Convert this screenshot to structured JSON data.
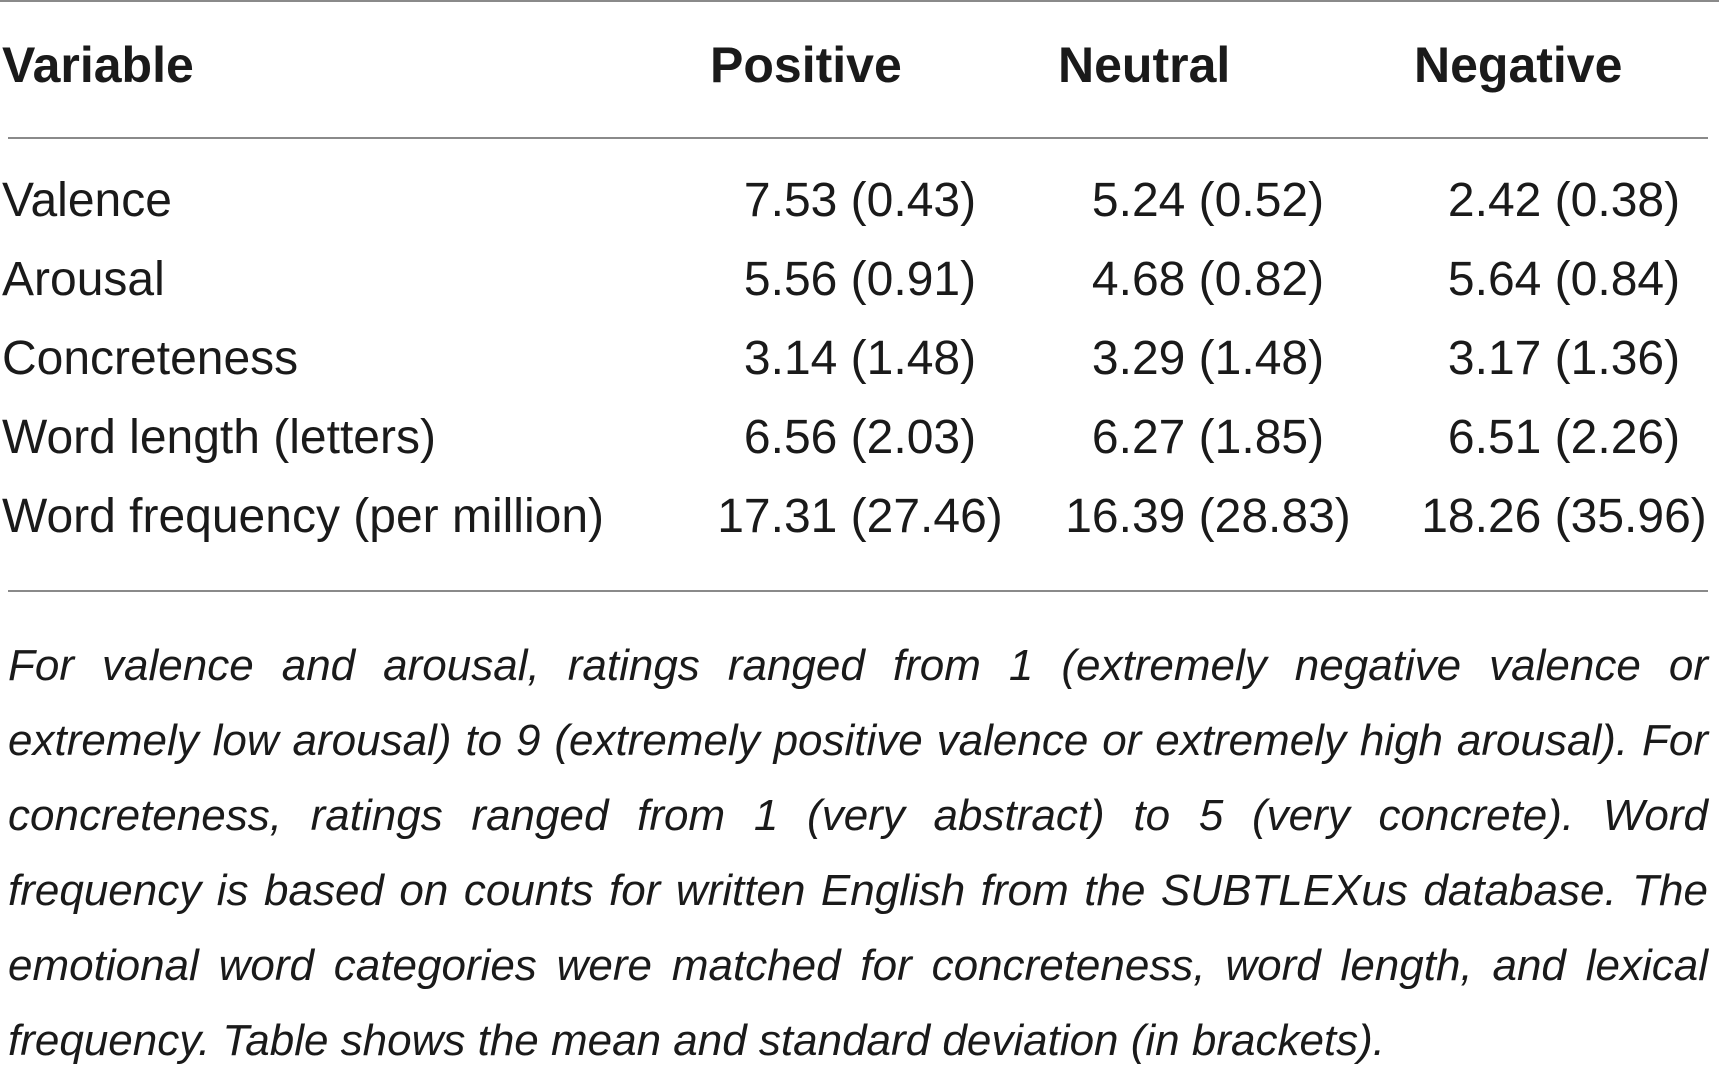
{
  "table": {
    "headers": [
      "Variable",
      "Positive",
      "Neutral",
      "Negative"
    ],
    "rows": [
      [
        "Valence",
        "7.53 (0.43)",
        "5.24 (0.52)",
        "2.42 (0.38)"
      ],
      [
        "Arousal",
        "5.56 (0.91)",
        "4.68 (0.82)",
        "5.64 (0.84)"
      ],
      [
        "Concreteness",
        "3.14 (1.48)",
        "3.29 (1.48)",
        "3.17 (1.36)"
      ],
      [
        "Word length (letters)",
        "6.56 (2.03)",
        "6.27 (1.85)",
        "6.51 (2.26)"
      ],
      [
        "Word frequency (per million)",
        "17.31 (27.46)",
        "16.39 (28.83)",
        "18.26 (35.96)"
      ]
    ]
  },
  "footnote": "For valence and arousal, ratings ranged from 1 (extremely negative valence or extremely low arousal) to 9 (extremely positive valence or extremely high arousal). For concreteness, ratings ranged from 1 (very abstract) to 5 (very concrete). Word frequency is based on counts for written English from the SUBTLEXus database. The emotional word categories were matched for concreteness, word length, and lexical frequency. Table shows the mean and standard deviation (in brackets)."
}
